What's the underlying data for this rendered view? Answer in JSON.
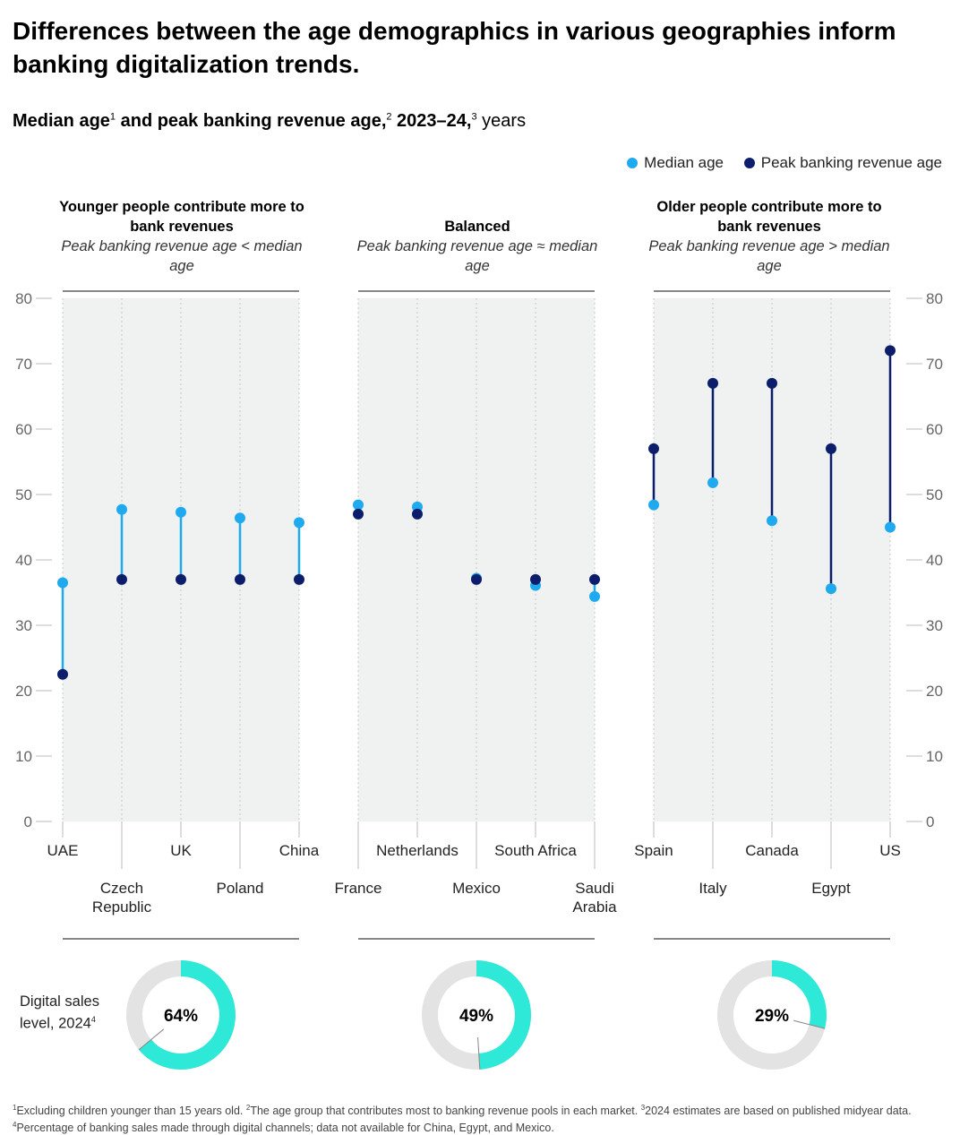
{
  "title": "Differences between the age demographics in various geographies inform banking digitalization trends.",
  "subtitle": {
    "bold": "Median age",
    "sup1": "1",
    "bold2": " and peak banking revenue age,",
    "sup2": "2",
    "bold3": " 2023–24,",
    "sup3": "3",
    "unit": " years"
  },
  "legend": {
    "median_label": "Median age",
    "peak_label": "Peak banking revenue age"
  },
  "colors": {
    "median": "#1fa9ee",
    "peak": "#0b1d6b",
    "donut_fill": "#2ee8d8",
    "donut_bg": "#e3e3e3",
    "panel": "#f0f1f1"
  },
  "groups": [
    {
      "title": "Younger people contribute more to bank revenues",
      "sub": "Peak banking revenue age < median age"
    },
    {
      "title": "Balanced",
      "sub": "Peak banking revenue age ≈ median age"
    },
    {
      "title": "Older people contribute more to bank revenues",
      "sub": "Peak banking revenue age > median age"
    }
  ],
  "chart_data": {
    "type": "scatter",
    "title": "Median age and peak banking revenue age, 2023–24, years",
    "ylim": [
      0,
      80
    ],
    "yticks": [
      0,
      10,
      20,
      30,
      40,
      50,
      60,
      70,
      80
    ],
    "categories": [
      "UAE",
      "Czech Republic",
      "UK",
      "Poland",
      "China",
      "France",
      "Netherlands",
      "Mexico",
      "South Africa",
      "Saudi Arabia",
      "Spain",
      "Italy",
      "Canada",
      "Egypt",
      "US"
    ],
    "group_of_category": [
      0,
      0,
      0,
      0,
      0,
      1,
      1,
      1,
      1,
      1,
      2,
      2,
      2,
      2,
      2
    ],
    "series": [
      {
        "name": "Median age",
        "values": [
          36.5,
          47.7,
          47.3,
          46.4,
          45.7,
          48.4,
          48.1,
          37.2,
          36.1,
          34.4,
          48.4,
          51.8,
          46.0,
          35.6,
          45.0
        ]
      },
      {
        "name": "Peak banking revenue age",
        "values": [
          22.5,
          37.0,
          37.0,
          37.0,
          37.0,
          47.0,
          47.0,
          37.0,
          37.0,
          37.0,
          57.0,
          67.0,
          67.0,
          57.0,
          72.0
        ]
      }
    ],
    "donuts": [
      {
        "label": "64%",
        "value": 64
      },
      {
        "label": "49%",
        "value": 49
      },
      {
        "label": "29%",
        "value": 29
      }
    ]
  },
  "digital_sales": {
    "label": "Digital sales level, 2024",
    "sup": "4"
  },
  "footnotes": {
    "s1": "1",
    "t1": "Excluding children younger than 15 years old. ",
    "s2": "2",
    "t2": "The age group that contributes most to banking revenue pools in each market. ",
    "s3": "3",
    "t3": "2024 estimates are based on published midyear data. ",
    "s4": "4",
    "t4": "Percentage of banking sales made through digital channels; data not available for China, Egypt, and Mexico."
  }
}
